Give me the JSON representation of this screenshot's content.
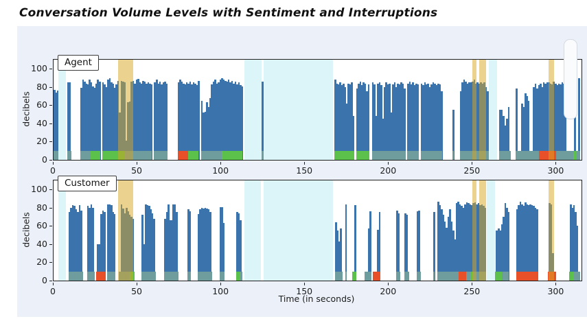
{
  "title": "Conversation Volume Levels with Sentiment and Interruptions",
  "figure": {
    "xlabel": "Time (in seconds)",
    "ylabel": "decibels",
    "x_ticks": [
      0,
      50,
      100,
      150,
      200,
      250,
      300
    ],
    "y_ticks": [
      0,
      20,
      40,
      60,
      80,
      100
    ],
    "xlim": [
      0,
      315
    ],
    "ylim": [
      0,
      110
    ]
  },
  "colors": {
    "bar": "#3b74ad",
    "sentiment_neutral": "#6f9d9d",
    "sentiment_positive": "#5cc14a",
    "sentiment_negative": "#e8502a",
    "interruption": "rgba(218,165,32,0.5)",
    "silence": "#dcf5f8",
    "figure_bg": "#ecf1f9",
    "plot_bg": "#ffffff"
  },
  "chart_data": [
    {
      "type": "bar",
      "label": "Agent",
      "ylabel": "decibels",
      "bar_width_seconds": 1,
      "segments": [
        {
          "start": 0,
          "heights": [
            77,
            74,
            76
          ]
        },
        {
          "start": 8,
          "heights": [
            85,
            85
          ]
        },
        {
          "start": 16,
          "heights": [
            79,
            88,
            86,
            84,
            83,
            88,
            85,
            81,
            79,
            84,
            88,
            86
          ]
        },
        {
          "start": 29,
          "heights": [
            85,
            83,
            80,
            88,
            90,
            85,
            84,
            79,
            83,
            87,
            52,
            87,
            86,
            85,
            21,
            63,
            64,
            86,
            87,
            84,
            88,
            89,
            85,
            84,
            87,
            86,
            84,
            85,
            84,
            83
          ]
        },
        {
          "start": 60,
          "heights": [
            85,
            88,
            84,
            86,
            83,
            85,
            86,
            84
          ]
        },
        {
          "start": 74,
          "heights": [
            85,
            88,
            86,
            84,
            83,
            85,
            84,
            86,
            83,
            85,
            84,
            82,
            87
          ]
        },
        {
          "start": 88,
          "heights": [
            65,
            52,
            53,
            63,
            58,
            68,
            83,
            86,
            88,
            84
          ]
        },
        {
          "start": 98,
          "heights": [
            85,
            88,
            90,
            88,
            87,
            86,
            88,
            85,
            87,
            84,
            86,
            83,
            85,
            82,
            81
          ]
        },
        {
          "start": 124.3,
          "heights": [
            86
          ]
        },
        {
          "start": 167.5,
          "heights": [
            88,
            84,
            83,
            85,
            82,
            84,
            80,
            62,
            84,
            83,
            85,
            48
          ]
        },
        {
          "start": 180.5,
          "heights": [
            78,
            84,
            86,
            82,
            85,
            84,
            75,
            83
          ]
        },
        {
          "start": 190,
          "heights": [
            85,
            83,
            48,
            84,
            85,
            82,
            45,
            80,
            85,
            83,
            84,
            52,
            83,
            85,
            80,
            84,
            83,
            85,
            84,
            78
          ]
        },
        {
          "start": 211,
          "heights": [
            84,
            86,
            83,
            85,
            82,
            84,
            83
          ]
        },
        {
          "start": 219,
          "heights": [
            84,
            82,
            85,
            83,
            84,
            80,
            83,
            85,
            84,
            82,
            84,
            83,
            75
          ]
        },
        {
          "start": 238,
          "heights": [
            55
          ]
        },
        {
          "start": 242.5,
          "heights": [
            75,
            85,
            88,
            86,
            84,
            85,
            85,
            86,
            88,
            84,
            85,
            84,
            85,
            84,
            85,
            80,
            75
          ]
        },
        {
          "start": 266,
          "heights": [
            55,
            55,
            48,
            38,
            45,
            58
          ]
        },
        {
          "start": 275.7,
          "heights": [
            78
          ]
        },
        {
          "start": 279,
          "heights": [
            62,
            58,
            73,
            70,
            65
          ]
        },
        {
          "start": 286,
          "heights": [
            80,
            84,
            78,
            82,
            84,
            80,
            85,
            84,
            85,
            85,
            84,
            83,
            86,
            84,
            82,
            84,
            83,
            85,
            84,
            78
          ]
        },
        {
          "start": 310.5,
          "heights": [
            88
          ]
        },
        {
          "start": 313,
          "heights": [
            90
          ]
        }
      ],
      "sentiments": [
        {
          "start": 0,
          "end": 3,
          "kind": "neutral"
        },
        {
          "start": 8,
          "end": 10.5,
          "kind": "neutral"
        },
        {
          "start": 16,
          "end": 22,
          "kind": "neutral"
        },
        {
          "start": 22,
          "end": 28,
          "kind": "positive"
        },
        {
          "start": 29,
          "end": 42.5,
          "kind": "positive"
        },
        {
          "start": 42.5,
          "end": 58.5,
          "kind": "neutral"
        },
        {
          "start": 59.8,
          "end": 68,
          "kind": "neutral"
        },
        {
          "start": 74,
          "end": 80.3,
          "kind": "negative"
        },
        {
          "start": 80.3,
          "end": 86.5,
          "kind": "positive"
        },
        {
          "start": 88,
          "end": 100.5,
          "kind": "neutral"
        },
        {
          "start": 100.5,
          "end": 112.5,
          "kind": "positive"
        },
        {
          "start": 124.3,
          "end": 125.3,
          "kind": "neutral"
        },
        {
          "start": 167.5,
          "end": 179.4,
          "kind": "positive"
        },
        {
          "start": 180.5,
          "end": 188.5,
          "kind": "positive"
        },
        {
          "start": 190,
          "end": 210,
          "kind": "neutral"
        },
        {
          "start": 211,
          "end": 218,
          "kind": "neutral"
        },
        {
          "start": 219,
          "end": 232,
          "kind": "neutral"
        },
        {
          "start": 238,
          "end": 239,
          "kind": "neutral"
        },
        {
          "start": 242.5,
          "end": 259.5,
          "kind": "neutral"
        },
        {
          "start": 266,
          "end": 273,
          "kind": "neutral"
        },
        {
          "start": 275.7,
          "end": 289.5,
          "kind": "neutral"
        },
        {
          "start": 289.5,
          "end": 299.8,
          "kind": "negative"
        },
        {
          "start": 299.8,
          "end": 310,
          "kind": "neutral"
        },
        {
          "start": 310,
          "end": 312.3,
          "kind": "positive"
        },
        {
          "start": 312.3,
          "end": 314,
          "kind": "neutral"
        }
      ],
      "interruptions": [
        [
          38.5,
          47.5
        ],
        [
          249.8,
          252.3
        ],
        [
          254,
          258
        ],
        [
          295.3,
          298.5
        ]
      ],
      "silences": [
        [
          3,
          7.5
        ],
        [
          113.9,
          124.3
        ],
        [
          125.4,
          166.8
        ],
        [
          259.8,
          264.5
        ]
      ]
    },
    {
      "type": "bar",
      "label": "Customer",
      "ylabel": "decibels",
      "bar_width_seconds": 1,
      "segments": [
        {
          "start": 9,
          "heights": [
            75,
            80,
            83,
            82,
            78,
            75,
            83,
            77
          ]
        },
        {
          "start": 20,
          "heights": [
            82,
            80,
            84,
            80
          ]
        },
        {
          "start": 26,
          "heights": [
            40,
            40,
            73,
            77,
            75
          ]
        },
        {
          "start": 32,
          "heights": [
            84,
            84,
            83,
            75,
            73
          ]
        },
        {
          "start": 40,
          "heights": [
            84,
            79,
            74,
            80,
            76,
            72,
            70,
            68
          ]
        },
        {
          "start": 52.5,
          "heights": [
            72,
            40,
            84,
            83,
            82,
            78,
            74,
            68
          ]
        },
        {
          "start": 66,
          "heights": [
            68,
            75,
            84,
            66,
            66,
            84,
            84,
            75
          ]
        },
        {
          "start": 80,
          "heights": [
            78,
            76
          ]
        },
        {
          "start": 86,
          "heights": [
            73,
            78,
            80,
            79,
            80,
            79,
            78,
            75
          ]
        },
        {
          "start": 99,
          "heights": [
            81,
            81,
            63
          ]
        },
        {
          "start": 109,
          "heights": [
            75,
            74,
            66
          ]
        },
        {
          "start": 168,
          "heights": [
            64,
            55,
            43,
            57
          ]
        },
        {
          "start": 174,
          "heights": [
            84
          ]
        },
        {
          "start": 179.5,
          "heights": [
            83
          ]
        },
        {
          "start": 187.5,
          "heights": [
            57,
            76
          ]
        },
        {
          "start": 193,
          "heights": [
            56,
            75
          ]
        },
        {
          "start": 204.5,
          "heights": [
            77,
            74
          ]
        },
        {
          "start": 209.5,
          "heights": [
            74,
            72
          ]
        },
        {
          "start": 216.5,
          "heights": [
            76,
            77
          ]
        },
        {
          "start": 226.5,
          "heights": [
            75
          ]
        },
        {
          "start": 229,
          "heights": [
            87,
            83,
            78,
            72,
            65,
            58,
            70,
            78,
            65,
            55,
            45,
            85,
            87,
            84,
            82,
            80,
            84,
            86,
            85,
            84,
            83,
            85,
            86,
            84,
            85,
            83,
            84,
            82,
            80
          ]
        },
        {
          "start": 264,
          "heights": [
            55,
            57,
            55,
            62,
            70,
            85,
            80,
            75
          ]
        },
        {
          "start": 276,
          "heights": [
            78,
            83,
            87,
            84,
            82,
            86,
            84,
            83,
            84,
            83,
            82,
            80,
            78
          ]
        },
        {
          "start": 295.5,
          "heights": [
            85,
            84,
            30
          ]
        },
        {
          "start": 308,
          "heights": [
            84,
            80,
            83,
            75,
            60
          ]
        }
      ],
      "sentiments": [
        {
          "start": 9,
          "end": 17.5,
          "kind": "neutral"
        },
        {
          "start": 20,
          "end": 24.5,
          "kind": "neutral"
        },
        {
          "start": 25.5,
          "end": 31,
          "kind": "negative"
        },
        {
          "start": 32,
          "end": 37,
          "kind": "neutral"
        },
        {
          "start": 39,
          "end": 45.5,
          "kind": "neutral"
        },
        {
          "start": 45.5,
          "end": 48.3,
          "kind": "positive"
        },
        {
          "start": 52.5,
          "end": 61,
          "kind": "neutral"
        },
        {
          "start": 66,
          "end": 74.5,
          "kind": "neutral"
        },
        {
          "start": 80,
          "end": 82,
          "kind": "neutral"
        },
        {
          "start": 86,
          "end": 94.5,
          "kind": "neutral"
        },
        {
          "start": 99,
          "end": 102,
          "kind": "neutral"
        },
        {
          "start": 109,
          "end": 111.5,
          "kind": "positive"
        },
        {
          "start": 111.5,
          "end": 112.5,
          "kind": "neutral"
        },
        {
          "start": 168,
          "end": 172.5,
          "kind": "neutral"
        },
        {
          "start": 174,
          "end": 175,
          "kind": "neutral"
        },
        {
          "start": 178,
          "end": 180.5,
          "kind": "positive"
        },
        {
          "start": 185.5,
          "end": 189.5,
          "kind": "neutral"
        },
        {
          "start": 190.5,
          "end": 195,
          "kind": "negative"
        },
        {
          "start": 204.5,
          "end": 207,
          "kind": "neutral"
        },
        {
          "start": 209.5,
          "end": 212,
          "kind": "neutral"
        },
        {
          "start": 216.5,
          "end": 219,
          "kind": "neutral"
        },
        {
          "start": 226.5,
          "end": 227.5,
          "kind": "neutral"
        },
        {
          "start": 229,
          "end": 241.5,
          "kind": "neutral"
        },
        {
          "start": 241.5,
          "end": 246,
          "kind": "negative"
        },
        {
          "start": 246,
          "end": 248.5,
          "kind": "neutral"
        },
        {
          "start": 248.5,
          "end": 250.5,
          "kind": "positive"
        },
        {
          "start": 250.5,
          "end": 258,
          "kind": "neutral"
        },
        {
          "start": 263.5,
          "end": 267.5,
          "kind": "positive"
        },
        {
          "start": 267.5,
          "end": 271.5,
          "kind": "neutral"
        },
        {
          "start": 276,
          "end": 289,
          "kind": "negative"
        },
        {
          "start": 295,
          "end": 299.8,
          "kind": "negative"
        },
        {
          "start": 307.5,
          "end": 310.5,
          "kind": "positive"
        },
        {
          "start": 310.5,
          "end": 314,
          "kind": "neutral"
        }
      ],
      "interruptions": [
        [
          38.5,
          47.5
        ],
        [
          249.8,
          252.3
        ],
        [
          254,
          258
        ],
        [
          295.3,
          298.5
        ]
      ],
      "silences": [
        [
          3,
          7.5
        ],
        [
          113.9,
          123.8
        ],
        [
          125.4,
          166.8
        ],
        [
          258.3,
          263.5
        ]
      ]
    }
  ]
}
